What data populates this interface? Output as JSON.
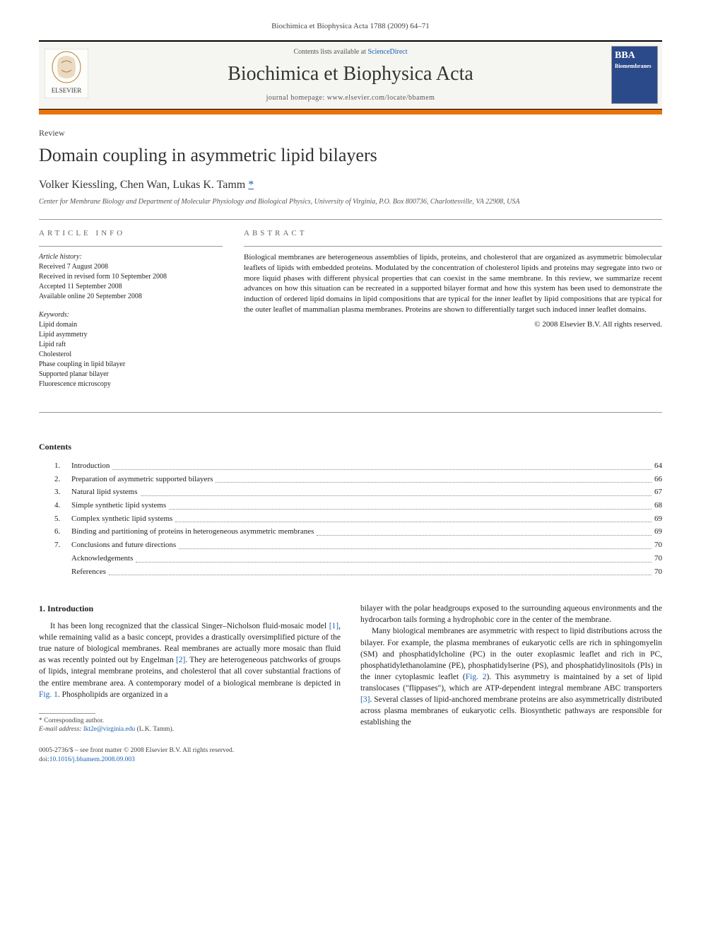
{
  "header": {
    "citation": "Biochimica et Biophysica Acta 1788 (2009) 64–71",
    "contents_prefix": "Contents lists available at ",
    "contents_link": "ScienceDirect",
    "journal_title": "Biochimica et Biophysica Acta",
    "homepage_prefix": "journal homepage: ",
    "homepage_url": "www.elsevier.com/locate/bbamem",
    "publisher": "ELSEVIER",
    "cover_tag": "BBA",
    "cover_sub": "Biomembranes"
  },
  "article": {
    "type": "Review",
    "title": "Domain coupling in asymmetric lipid bilayers",
    "authors": "Volker Kiessling, Chen Wan, Lukas K. Tamm ",
    "corr_mark": "*",
    "affiliation": "Center for Membrane Biology and Department of Molecular Physiology and Biological Physics, University of Virginia, P.O. Box 800736, Charlottesville, VA 22908, USA"
  },
  "info": {
    "heading": "ARTICLE INFO",
    "history_label": "Article history:",
    "received": "Received 7 August 2008",
    "revised": "Received in revised form 10 September 2008",
    "accepted": "Accepted 11 September 2008",
    "online": "Available online 20 September 2008",
    "keywords_label": "Keywords:",
    "keywords": [
      "Lipid domain",
      "Lipid asymmetry",
      "Lipid raft",
      "Cholesterol",
      "Phase coupling in lipid bilayer",
      "Supported planar bilayer",
      "Fluorescence microscopy"
    ]
  },
  "abstract": {
    "heading": "ABSTRACT",
    "text": "Biological membranes are heterogeneous assemblies of lipids, proteins, and cholesterol that are organized as asymmetric bimolecular leaflets of lipids with embedded proteins. Modulated by the concentration of cholesterol lipids and proteins may segregate into two or more liquid phases with different physical properties that can coexist in the same membrane. In this review, we summarize recent advances on how this situation can be recreated in a supported bilayer format and how this system has been used to demonstrate the induction of ordered lipid domains in lipid compositions that are typical for the inner leaflet by lipid compositions that are typical for the outer leaflet of mammalian plasma membranes. Proteins are shown to differentially target such induced inner leaflet domains.",
    "copyright": "© 2008 Elsevier B.V. All rights reserved."
  },
  "contents": {
    "heading": "Contents",
    "items": [
      {
        "num": "1.",
        "title": "Introduction",
        "page": "64"
      },
      {
        "num": "2.",
        "title": "Preparation of asymmetric supported bilayers",
        "page": "66"
      },
      {
        "num": "3.",
        "title": "Natural lipid systems",
        "page": "67"
      },
      {
        "num": "4.",
        "title": "Simple synthetic lipid systems",
        "page": "68"
      },
      {
        "num": "5.",
        "title": "Complex synthetic lipid systems",
        "page": "69"
      },
      {
        "num": "6.",
        "title": "Binding and partitioning of proteins in heterogeneous asymmetric membranes",
        "page": "69"
      },
      {
        "num": "7.",
        "title": "Conclusions and future directions",
        "page": "70"
      },
      {
        "num": "",
        "title": "Acknowledgements",
        "page": "70"
      },
      {
        "num": "",
        "title": "References",
        "page": "70"
      }
    ]
  },
  "body": {
    "h1": "1. Introduction",
    "p1a": "It has been long recognized that the classical Singer–Nicholson fluid-mosaic model ",
    "ref1": "[1]",
    "p1b": ", while remaining valid as a basic concept, provides a drastically oversimplified picture of the true nature of biological membranes. Real membranes are actually more mosaic than fluid as was recently pointed out by Engelman ",
    "ref2": "[2]",
    "p1c": ". They are heterogeneous patchworks of groups of lipids, integral membrane proteins, and cholesterol that all cover substantial fractions of the entire membrane area. A contemporary model of a biological membrane is depicted in ",
    "fig1": "Fig. 1",
    "p1d": ". Phospholipids are organized in a",
    "p2": "bilayer with the polar headgroups exposed to the surrounding aqueous environments and the hydrocarbon tails forming a hydrophobic core in the center of the membrane.",
    "p3a": "Many biological membranes are asymmetric with respect to lipid distributions across the bilayer. For example, the plasma membranes of eukaryotic cells are rich in sphingomyelin (SM) and phosphatidylcholine (PC) in the outer exoplasmic leaflet and rich in PC, phosphatidylethanolamine (PE), phosphatidylserine (PS), and phosphatidylinositols (PIs) in the inner cytoplasmic leaflet (",
    "fig2": "Fig. 2",
    "p3b": "). This asymmetry is maintained by a set of lipid translocases (\"flippases\"), which are ATP-dependent integral membrane ABC transporters ",
    "ref3": "[3]",
    "p3c": ". Several classes of lipid-anchored membrane proteins are also asymmetrically distributed across plasma membranes of eukaryotic cells. Biosynthetic pathways are responsible for establishing the"
  },
  "footnote": {
    "corr": "* Corresponding author.",
    "email_label": "E-mail address: ",
    "email": "lkt2e@virginia.edu",
    "email_suffix": " (L.K. Tamm)."
  },
  "footer": {
    "line1": "0005-2736/$ – see front matter © 2008 Elsevier B.V. All rights reserved.",
    "doi_prefix": "doi:",
    "doi": "10.1016/j.bbamem.2008.09.003"
  },
  "colors": {
    "link": "#1a5fb4",
    "orange": "#e8730a",
    "cover_bg": "#2a4a8a"
  }
}
